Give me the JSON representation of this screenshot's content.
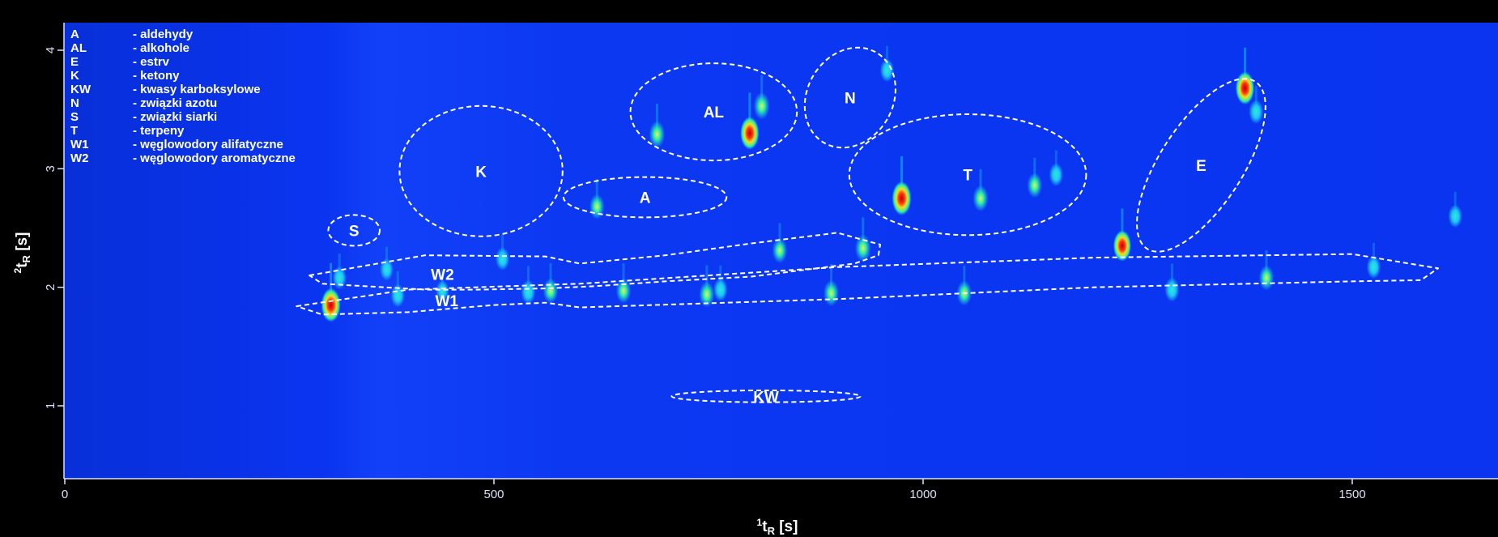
{
  "chart_data": {
    "type": "heatmap",
    "title": "",
    "xlabel": {
      "sup": "1",
      "main": "t",
      "sub": "R",
      "unit": " [s]"
    },
    "ylabel": {
      "sup": "2",
      "main": "t",
      "sub": "R",
      "unit": " [s]"
    },
    "xlim": [
      0,
      1680
    ],
    "ylim": [
      1.0,
      4.3
    ],
    "x_ticks": [
      0,
      500,
      1000,
      1500
    ],
    "y_ticks": [
      1,
      2,
      3,
      4
    ],
    "colors": {
      "background": "#0a34f0",
      "frame": "#000000",
      "axis": "#d9e0ff",
      "text": "#ffffff",
      "ellipse": "#ffffff",
      "peak_scale": [
        "#1ec8ff",
        "#2ef0a0",
        "#f0e020",
        "#ff8c00",
        "#e81010"
      ]
    },
    "legend": {
      "placement": "top-left",
      "entries": [
        {
          "code": "A",
          "label": "- aldehydy"
        },
        {
          "code": "AL",
          "label": "- alkohole"
        },
        {
          "code": "E",
          "label": "- estrv"
        },
        {
          "code": "K",
          "label": "- ketony"
        },
        {
          "code": "KW",
          "label": "- kwasy karboksylowe"
        },
        {
          "code": "N",
          "label": "- związki azotu"
        },
        {
          "code": "S",
          "label": "- związki siarki"
        },
        {
          "code": "T",
          "label": "- terpeny"
        },
        {
          "code": "W1",
          "label": "- węglowodory alifatyczne"
        },
        {
          "code": "W2",
          "label": "- węglowodory aromatyczne"
        }
      ]
    },
    "groups": [
      {
        "label": "S",
        "shape": "ellipse",
        "cx": 337,
        "cy": 2.48,
        "rx": 30,
        "ry": 0.13
      },
      {
        "label": "K",
        "shape": "ellipse",
        "cx": 485,
        "cy": 2.98,
        "rx": 95,
        "ry": 0.55
      },
      {
        "label": "A",
        "shape": "ellipse",
        "cx": 676,
        "cy": 2.76,
        "rx": 95,
        "ry": 0.17
      },
      {
        "label": "AL",
        "shape": "ellipse",
        "cx": 756,
        "cy": 3.48,
        "rx": 97,
        "ry": 0.41
      },
      {
        "label": "N",
        "shape": "ellipse",
        "cx": 915,
        "cy": 3.6,
        "rx": 50,
        "ry": 0.44,
        "rotate": 30
      },
      {
        "label": "T",
        "shape": "ellipse",
        "cx": 1052,
        "cy": 2.95,
        "rx": 138,
        "ry": 0.51
      },
      {
        "label": "E",
        "shape": "ellipse",
        "cx": 1324,
        "cy": 3.03,
        "rx": 48,
        "ry": 0.84,
        "rotate": 33
      },
      {
        "label": "KW",
        "shape": "ellipse",
        "cx": 817,
        "cy": 1.08,
        "rx": 110,
        "ry": 0.05
      },
      {
        "label": "W2",
        "shape": "region",
        "x": [
          285,
          420,
          560,
          600,
          700,
          800,
          900,
          950,
          948,
          920,
          800,
          700,
          620,
          560,
          480,
          420,
          300
        ],
        "y": [
          2.1,
          2.27,
          2.26,
          2.2,
          2.27,
          2.37,
          2.46,
          2.36,
          2.27,
          2.2,
          2.09,
          2.05,
          2.01,
          1.99,
          1.98,
          1.98,
          2.03
        ]
      },
      {
        "label": "W1",
        "shape": "region",
        "x": [
          270,
          400,
          600,
          900,
          1200,
          1500,
          1600,
          1580,
          1500,
          1200,
          900,
          600,
          560,
          500,
          400,
          300
        ],
        "y": [
          1.84,
          1.98,
          2.03,
          2.17,
          2.25,
          2.28,
          2.16,
          2.06,
          2.05,
          2.0,
          1.9,
          1.83,
          1.87,
          1.85,
          1.79,
          1.77
        ]
      }
    ],
    "peaks": [
      {
        "x": 310,
        "y": 1.85,
        "i": 1.0
      },
      {
        "x": 320,
        "y": 2.08,
        "i": 0.45
      },
      {
        "x": 375,
        "y": 2.15,
        "i": 0.4
      },
      {
        "x": 388,
        "y": 1.93,
        "i": 0.45
      },
      {
        "x": 440,
        "y": 1.97,
        "i": 0.35
      },
      {
        "x": 510,
        "y": 2.24,
        "i": 0.45
      },
      {
        "x": 540,
        "y": 1.96,
        "i": 0.5
      },
      {
        "x": 566,
        "y": 1.97,
        "i": 0.55
      },
      {
        "x": 620,
        "y": 2.68,
        "i": 0.55
      },
      {
        "x": 651,
        "y": 1.97,
        "i": 0.55
      },
      {
        "x": 690,
        "y": 3.29,
        "i": 0.65
      },
      {
        "x": 748,
        "y": 1.94,
        "i": 0.6
      },
      {
        "x": 764,
        "y": 1.98,
        "i": 0.45
      },
      {
        "x": 798,
        "y": 3.3,
        "i": 0.95
      },
      {
        "x": 812,
        "y": 3.53,
        "i": 0.65
      },
      {
        "x": 833,
        "y": 2.31,
        "i": 0.55
      },
      {
        "x": 893,
        "y": 1.95,
        "i": 0.6
      },
      {
        "x": 930,
        "y": 2.33,
        "i": 0.65
      },
      {
        "x": 958,
        "y": 3.83,
        "i": 0.45
      },
      {
        "x": 975,
        "y": 2.75,
        "i": 1.0
      },
      {
        "x": 1048,
        "y": 1.95,
        "i": 0.55
      },
      {
        "x": 1067,
        "y": 2.75,
        "i": 0.6
      },
      {
        "x": 1130,
        "y": 2.86,
        "i": 0.55
      },
      {
        "x": 1155,
        "y": 2.95,
        "i": 0.45
      },
      {
        "x": 1232,
        "y": 2.35,
        "i": 0.85
      },
      {
        "x": 1290,
        "y": 1.98,
        "i": 0.5
      },
      {
        "x": 1375,
        "y": 3.68,
        "i": 0.95
      },
      {
        "x": 1388,
        "y": 3.48,
        "i": 0.5
      },
      {
        "x": 1400,
        "y": 2.08,
        "i": 0.55
      },
      {
        "x": 1525,
        "y": 2.17,
        "i": 0.45
      },
      {
        "x": 1620,
        "y": 2.6,
        "i": 0.45
      }
    ]
  }
}
